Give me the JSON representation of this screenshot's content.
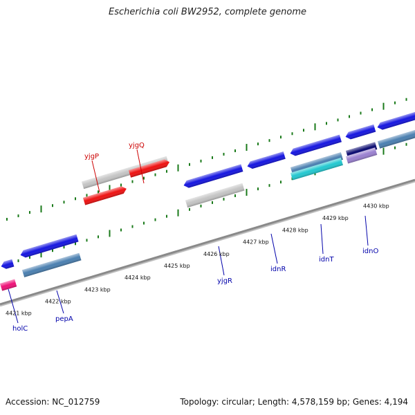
{
  "title": "Escherichia coli BW2952, complete genome",
  "footer": {
    "accession": "Accession: NC_012759",
    "summary": "Topology: circular; Length: 4,578,159 bp; Genes: 4,194"
  },
  "colors": {
    "backbone": "#8a8a8a",
    "tick": "#1a7a1a",
    "forward_label": "#cc0000",
    "reverse_label": "#0000aa",
    "cds_red": "#ee1111",
    "cds_blue": "#1515e0",
    "cds_grey": "#c4c4c4",
    "cds_steel": "#4a7fb0",
    "cds_cyan": "#22c8d0",
    "cds_pink": "#ee1177",
    "cds_navy": "#0a0a70",
    "cds_lilac": "#9a80d0"
  },
  "scale_labels": [
    "4421 kbp",
    "4422 kbp",
    "4423 kbp",
    "4424 kbp",
    "4425 kbp",
    "4426 kbp",
    "4427 kbp",
    "4428 kbp",
    "4429 kbp",
    "4430 kbp"
  ],
  "gene_labels_forward": [
    "yjgP",
    "yjgQ"
  ],
  "gene_labels_reverse": [
    "holC",
    "pepA",
    "yjgR",
    "idnR",
    "idnT",
    "idnO"
  ]
}
